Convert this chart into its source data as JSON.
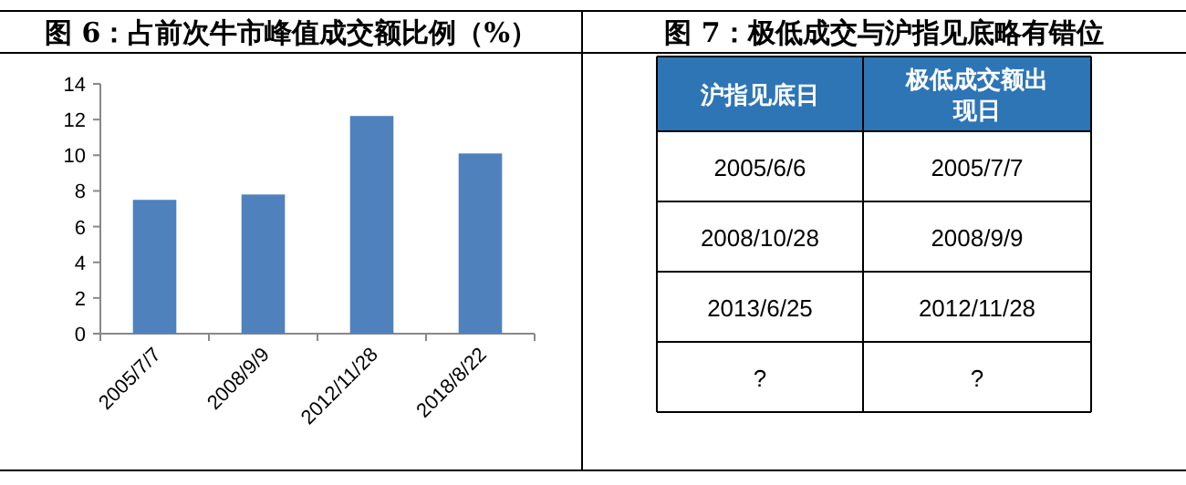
{
  "chart_data": [
    {
      "type": "bar",
      "title": "图 6：占前次牛市峰值成交额比例（%）",
      "categories": [
        "2005/7/7",
        "2008/9/9",
        "2012/11/28",
        "2018/8/22"
      ],
      "values": [
        7.5,
        7.8,
        12.2,
        10.1
      ],
      "color": "#4f81bd",
      "ylim": [
        0,
        14
      ],
      "yticks": [
        0,
        2,
        4,
        6,
        8,
        10,
        12,
        14
      ]
    },
    {
      "type": "other",
      "title": "图 7：极低成交与沪指见底略有错位",
      "color": "#2e75b6",
      "categories": [
        "沪指见底日",
        "极低成交额出现日"
      ],
      "annotations": [
        "2005/6/6",
        "2005/7/7",
        "2008/10/28",
        "2008/9/9",
        "2013/6/25",
        "2012/11/28",
        "?",
        "?"
      ]
    }
  ]
}
